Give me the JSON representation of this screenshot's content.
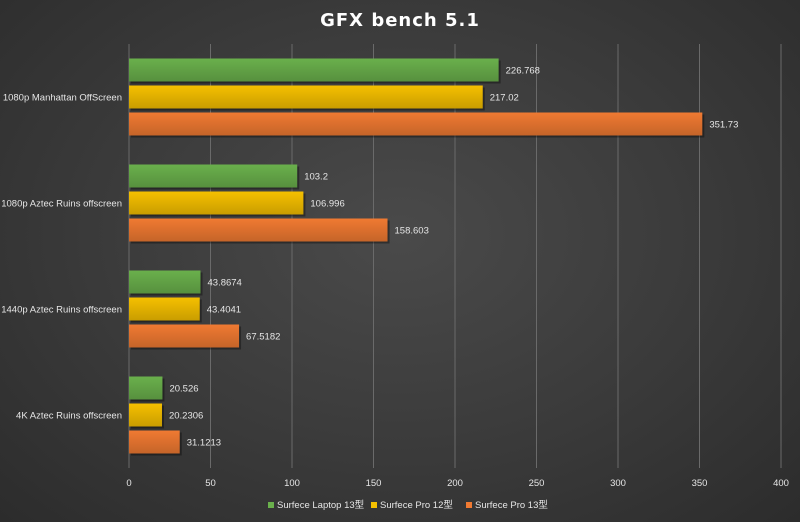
{
  "chart_data": {
    "type": "bar",
    "orientation": "horizontal",
    "title": "GFX bench  5.1",
    "categories": [
      "1080p Manhattan OffScreen",
      "1080p Aztec Ruins offscreen",
      "1440p Aztec Ruins offscreen",
      "4K Aztec Ruins offscreen"
    ],
    "series": [
      {
        "name": "Surfece Laptop 13型",
        "color": "#6ab04c",
        "values": [
          226.768,
          103.2,
          43.8674,
          20.526
        ],
        "labels": [
          "226.768",
          "103.2",
          "43.8674",
          "20.526"
        ]
      },
      {
        "name": "Surfece Pro 12型",
        "color": "#f5c000",
        "values": [
          217.02,
          106.996,
          43.4041,
          20.2306
        ],
        "labels": [
          "217.02",
          "106.996",
          "43.4041",
          "20.2306"
        ]
      },
      {
        "name": "Surfece Pro 13型",
        "color": "#f07a32",
        "values": [
          351.73,
          158.603,
          67.5182,
          31.1213
        ],
        "labels": [
          "351.73",
          "158.603",
          "67.5182",
          "31.1213"
        ]
      }
    ],
    "xlim": [
      0,
      400
    ],
    "xticks": [
      0,
      50,
      100,
      150,
      200,
      250,
      300,
      350,
      400
    ],
    "xticklabels": [
      "0",
      "50",
      "100",
      "150",
      "200",
      "250",
      "300",
      "350",
      "400"
    ],
    "xlabel": "",
    "ylabel": "",
    "grid": true,
    "legend": "bottom"
  }
}
